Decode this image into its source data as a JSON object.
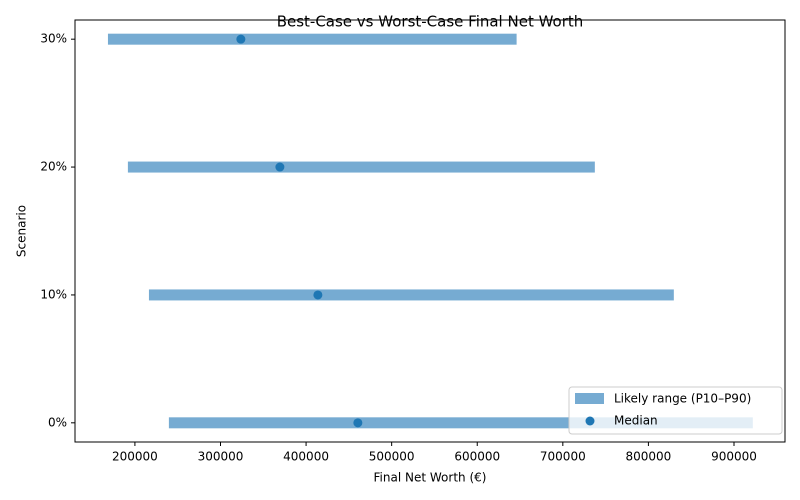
{
  "chart_data": {
    "type": "range",
    "title": "Best-Case vs Worst-Case Final Net Worth",
    "x_label": "Final Net Worth (€)",
    "y_label": "Scenario",
    "categories": [
      "0%",
      "10%",
      "20%",
      "30%"
    ],
    "series": [
      {
        "name": "Likely range (P10–P90)",
        "color": "#76abd2",
        "low": [
          239700,
          216400,
          191800,
          168500
        ],
        "high": [
          922000,
          829700,
          737400,
          646000
        ]
      },
      {
        "name": "Median",
        "color": "#1f77b4",
        "values": [
          460500,
          413800,
          369400,
          323800
        ]
      }
    ],
    "xlim": [
      130000,
      959600
    ],
    "xticks": [
      200000,
      300000,
      400000,
      500000,
      600000,
      700000,
      800000,
      900000
    ],
    "legend": "lower right"
  }
}
